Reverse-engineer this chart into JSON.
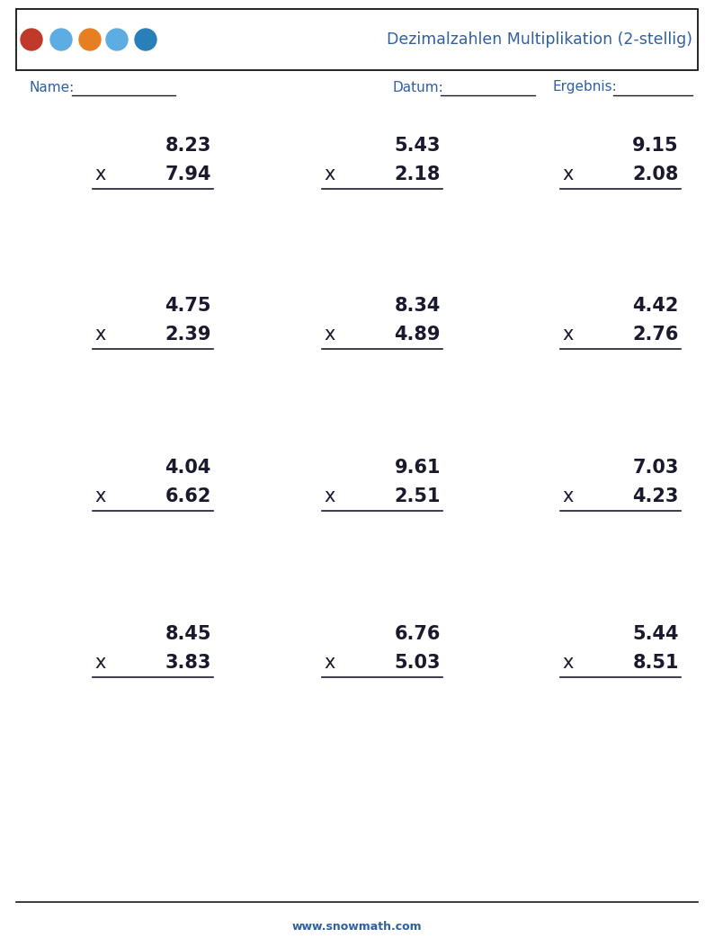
{
  "title": "Dezimalzahlen Multiplikation (2-stellig)",
  "title_color": "#3060a0",
  "name_label": "Name:",
  "datum_label": "Datum:",
  "ergebnis_label": "Ergebnis:",
  "website": "www.snowmath.com",
  "problems": [
    [
      [
        "8.23",
        "7.94"
      ],
      [
        "5.43",
        "2.18"
      ],
      [
        "9.15",
        "2.08"
      ]
    ],
    [
      [
        "4.75",
        "2.39"
      ],
      [
        "8.34",
        "4.89"
      ],
      [
        "4.42",
        "2.76"
      ]
    ],
    [
      [
        "4.04",
        "6.62"
      ],
      [
        "9.61",
        "2.51"
      ],
      [
        "7.03",
        "4.23"
      ]
    ],
    [
      [
        "8.45",
        "3.83"
      ],
      [
        "6.76",
        "5.03"
      ],
      [
        "5.44",
        "8.51"
      ]
    ]
  ],
  "text_color": "#1a1a2e",
  "blue_color": "#3060a0",
  "header_box_color": "#000000",
  "font_size_numbers": 15,
  "font_size_labels": 11,
  "font_size_title": 12.5,
  "font_size_website": 9,
  "multiply_symbol": "x"
}
